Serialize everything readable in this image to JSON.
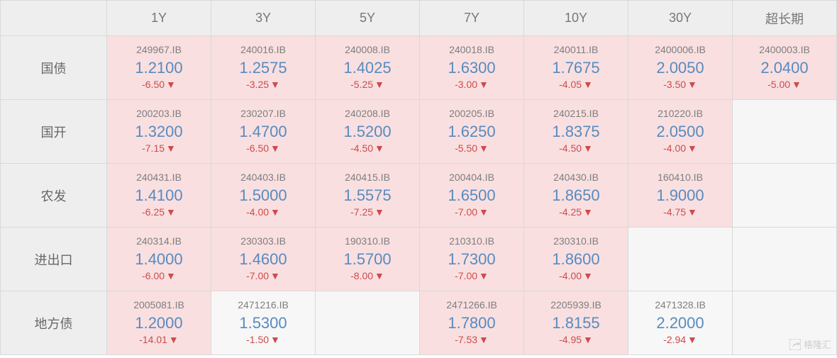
{
  "colors": {
    "header_bg": "#eeeeee",
    "header_fg": "#777777",
    "border": "#d9d9d9",
    "cell_pink": "#f9dfe0",
    "cell_grey": "#f7f7f7",
    "code_fg": "#7e7e7e",
    "value_fg": "#578bbf",
    "change_fg": "#cf4a4a",
    "rowlabel_fg": "#676767"
  },
  "fontsize": {
    "header": 18,
    "rowlabel": 18,
    "code": 14,
    "value": 22,
    "change": 14
  },
  "columns": [
    "1Y",
    "3Y",
    "5Y",
    "7Y",
    "10Y",
    "30Y",
    "超长期"
  ],
  "rows": [
    {
      "label": "国债",
      "cells": [
        {
          "code": "249967.IB",
          "value": "1.2100",
          "change": "-6.50",
          "highlight": true
        },
        {
          "code": "240016.IB",
          "value": "1.2575",
          "change": "-3.25",
          "highlight": true
        },
        {
          "code": "240008.IB",
          "value": "1.4025",
          "change": "-5.25",
          "highlight": true
        },
        {
          "code": "240018.IB",
          "value": "1.6300",
          "change": "-3.00",
          "highlight": true
        },
        {
          "code": "240011.IB",
          "value": "1.7675",
          "change": "-4.05",
          "highlight": true
        },
        {
          "code": "2400006.IB",
          "value": "2.0050",
          "change": "-3.50",
          "highlight": true
        },
        {
          "code": "2400003.IB",
          "value": "2.0400",
          "change": "-5.00",
          "highlight": true
        }
      ]
    },
    {
      "label": "国开",
      "cells": [
        {
          "code": "200203.IB",
          "value": "1.3200",
          "change": "-7.15",
          "highlight": true
        },
        {
          "code": "230207.IB",
          "value": "1.4700",
          "change": "-6.50",
          "highlight": true
        },
        {
          "code": "240208.IB",
          "value": "1.5200",
          "change": "-4.50",
          "highlight": true
        },
        {
          "code": "200205.IB",
          "value": "1.6250",
          "change": "-5.50",
          "highlight": true
        },
        {
          "code": "240215.IB",
          "value": "1.8375",
          "change": "-4.50",
          "highlight": true
        },
        {
          "code": "210220.IB",
          "value": "2.0500",
          "change": "-4.00",
          "highlight": true
        },
        null
      ]
    },
    {
      "label": "农发",
      "cells": [
        {
          "code": "240431.IB",
          "value": "1.4100",
          "change": "-6.25",
          "highlight": true
        },
        {
          "code": "240403.IB",
          "value": "1.5000",
          "change": "-4.00",
          "highlight": true
        },
        {
          "code": "240415.IB",
          "value": "1.5575",
          "change": "-7.25",
          "highlight": true
        },
        {
          "code": "200404.IB",
          "value": "1.6500",
          "change": "-7.00",
          "highlight": true
        },
        {
          "code": "240430.IB",
          "value": "1.8650",
          "change": "-4.25",
          "highlight": true
        },
        {
          "code": "160410.IB",
          "value": "1.9000",
          "change": "-4.75",
          "highlight": true
        },
        null
      ]
    },
    {
      "label": "进出口",
      "cells": [
        {
          "code": "240314.IB",
          "value": "1.4000",
          "change": "-6.00",
          "highlight": true
        },
        {
          "code": "230303.IB",
          "value": "1.4600",
          "change": "-7.00",
          "highlight": true
        },
        {
          "code": "190310.IB",
          "value": "1.5700",
          "change": "-8.00",
          "highlight": true
        },
        {
          "code": "210310.IB",
          "value": "1.7300",
          "change": "-7.00",
          "highlight": true
        },
        {
          "code": "230310.IB",
          "value": "1.8600",
          "change": "-4.00",
          "highlight": true
        },
        null,
        null
      ]
    },
    {
      "label": "地方债",
      "cells": [
        {
          "code": "2005081.IB",
          "value": "1.2000",
          "change": "-14.01",
          "highlight": true
        },
        {
          "code": "2471216.IB",
          "value": "1.5300",
          "change": "-1.50",
          "highlight": false
        },
        null,
        {
          "code": "2471266.IB",
          "value": "1.7800",
          "change": "-7.53",
          "highlight": true
        },
        {
          "code": "2205939.IB",
          "value": "1.8155",
          "change": "-4.95",
          "highlight": true
        },
        {
          "code": "2471328.IB",
          "value": "2.2000",
          "change": "-2.94",
          "highlight": false
        },
        null
      ]
    }
  ],
  "watermark": "格隆汇"
}
